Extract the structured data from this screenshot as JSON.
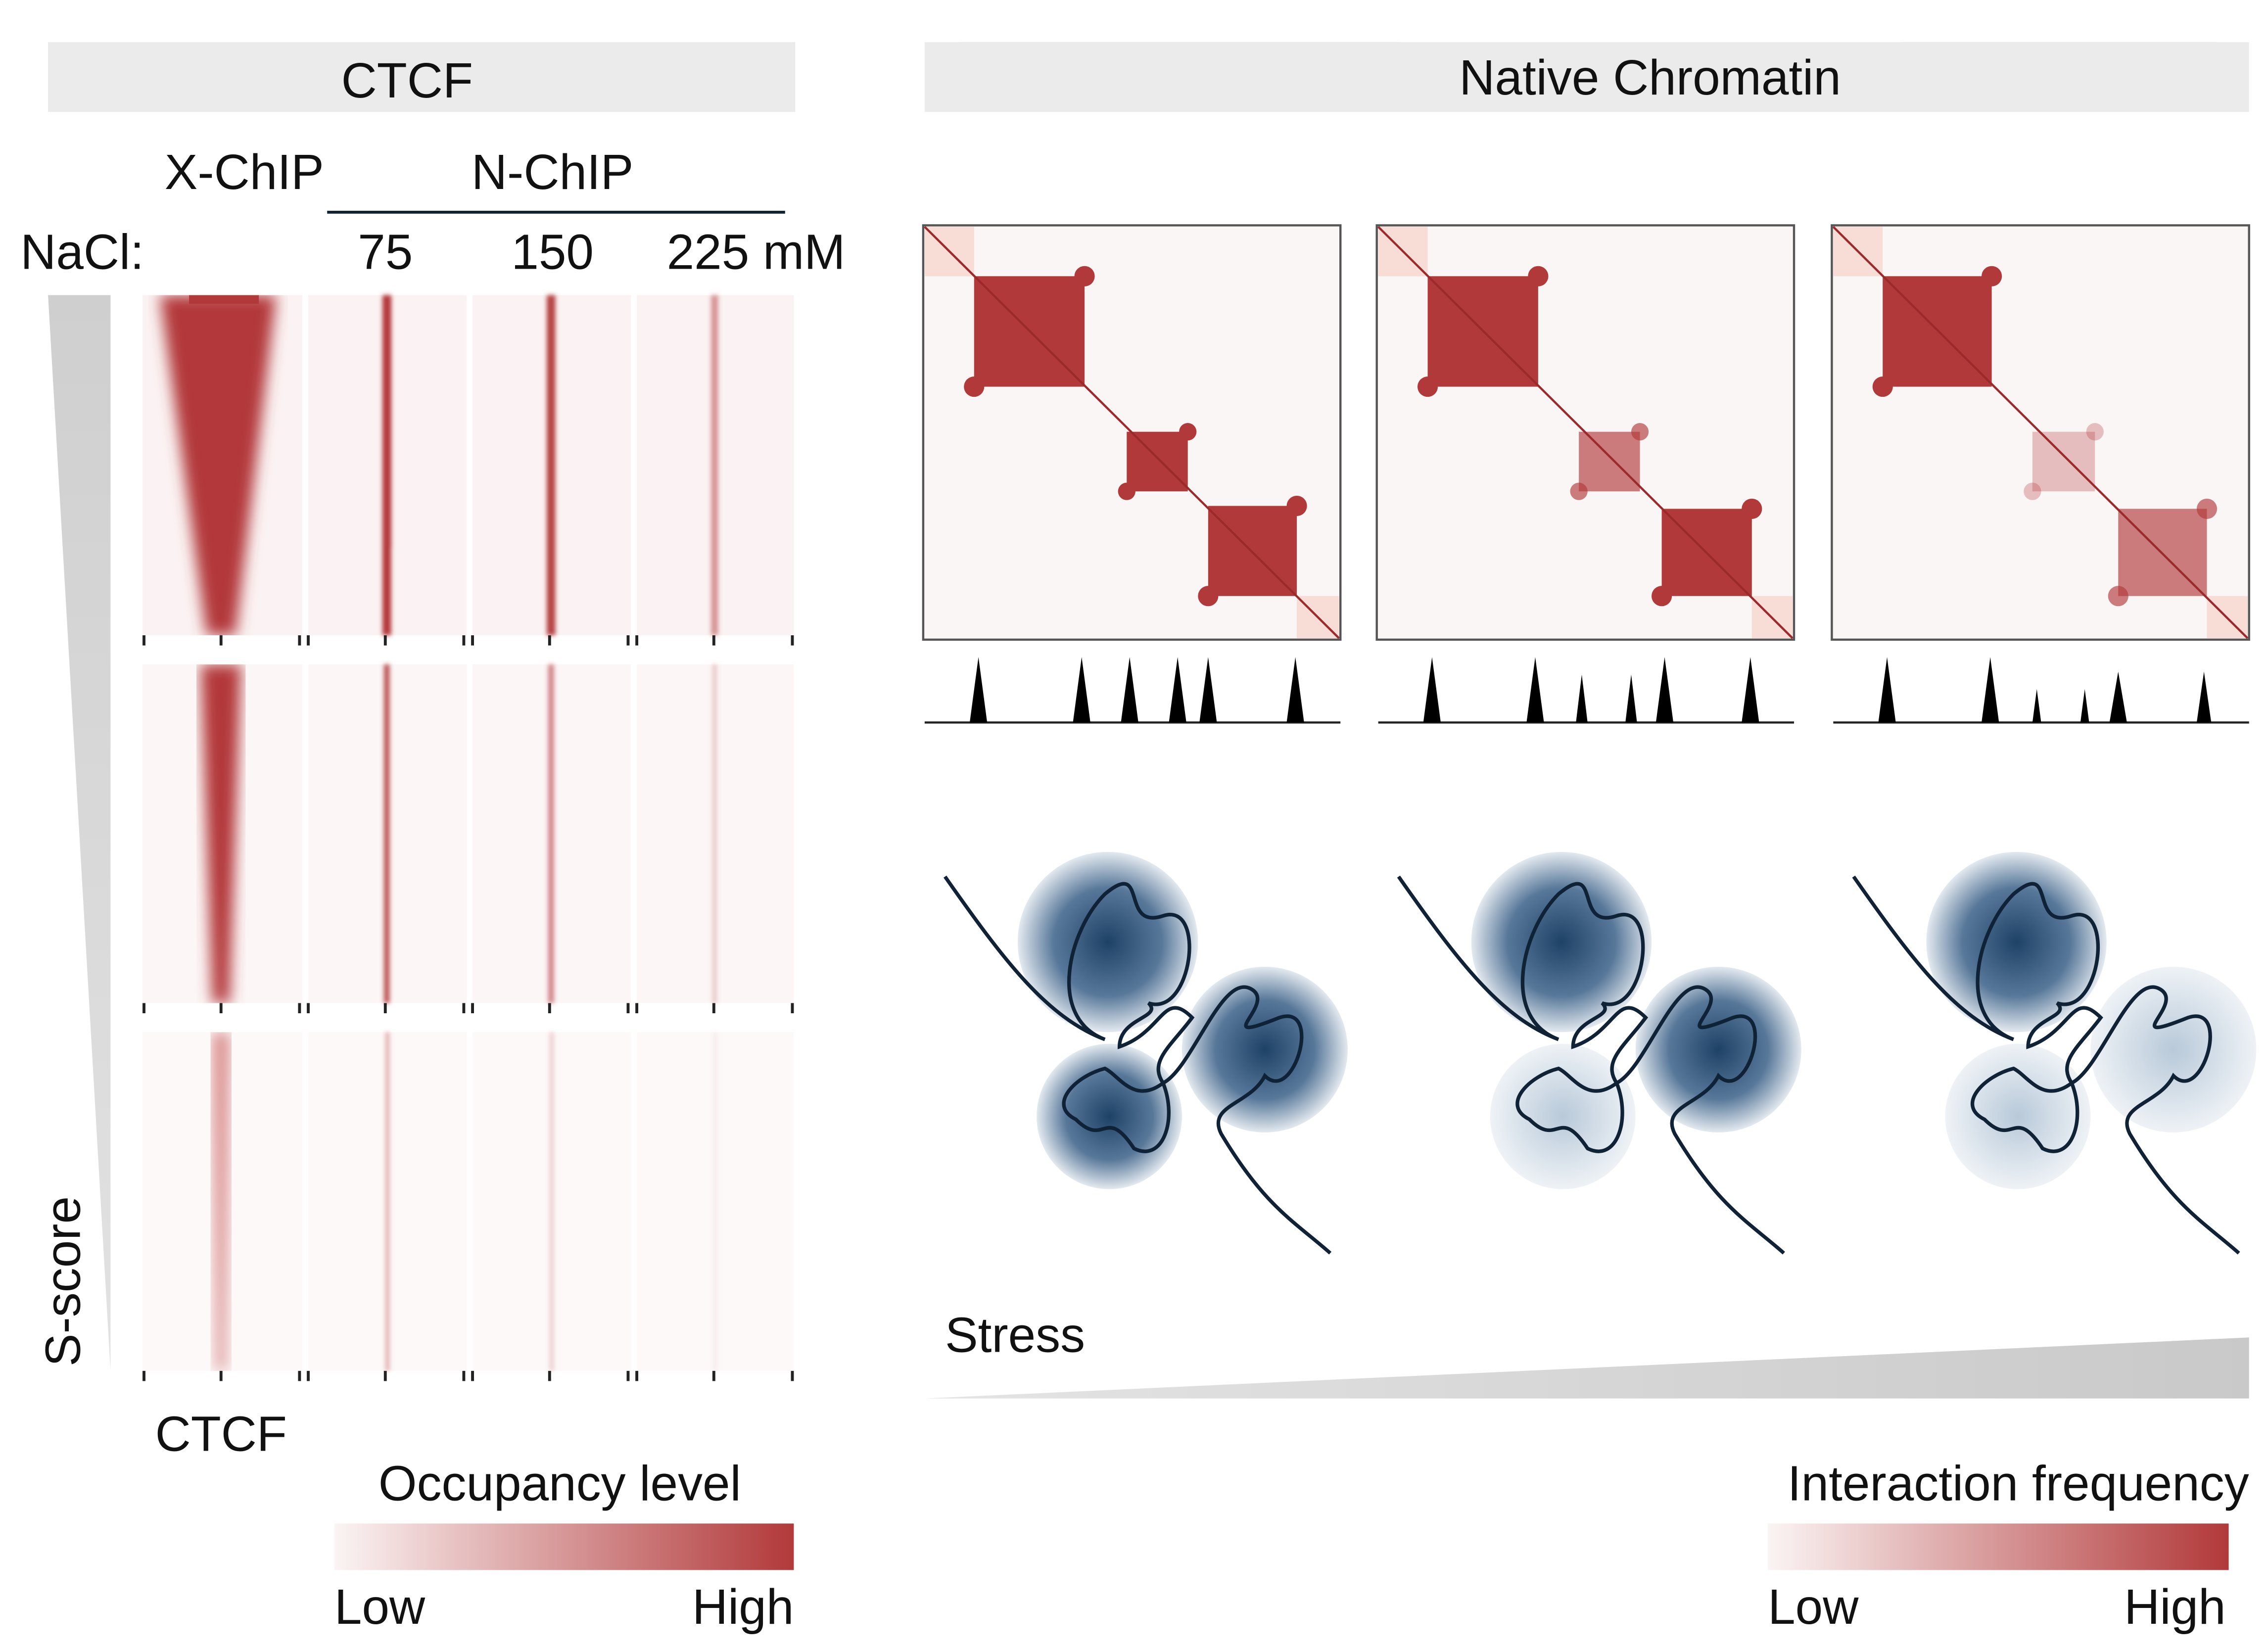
{
  "left_panel": {
    "title": "CTCF",
    "method_labels": [
      "X-ChIP",
      "N-ChIP"
    ],
    "salt_label": "NaCl:",
    "salt_levels": [
      "75",
      "150",
      "225 mM"
    ],
    "row_axis_label": "S-score",
    "x_axis_label": "CTCF",
    "legend": {
      "title": "Occupancy level",
      "low": "Low",
      "high": "High"
    }
  },
  "right_panel": {
    "title": "Native Chromatin",
    "gradient_label": "Stress",
    "legend": {
      "title": "Interaction frequency",
      "low": "Low",
      "high": "High"
    }
  }
}
